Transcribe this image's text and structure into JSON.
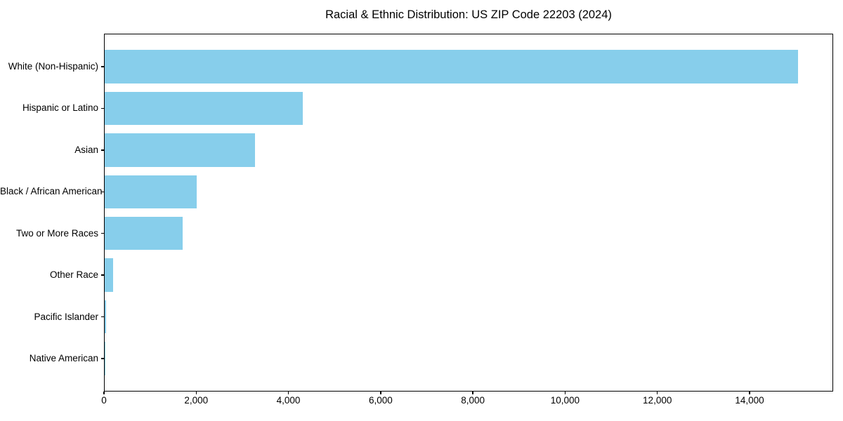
{
  "figure": {
    "background_color": "#ffffff",
    "text_color": "#000000"
  },
  "chart_data": {
    "type": "bar",
    "orientation": "horizontal",
    "title": "Racial & Ethnic Distribution: US ZIP Code 22203 (2024)",
    "categories": [
      "White (Non-Hispanic)",
      "Hispanic or Latino",
      "Asian",
      "Black / African American",
      "Two or More Races",
      "Other Race",
      "Pacific Islander",
      "Native American"
    ],
    "values": [
      15060,
      4300,
      3270,
      2000,
      1690,
      180,
      35,
      10
    ],
    "bar_color": "#87CEEB",
    "xlabel": "",
    "ylabel": "",
    "xlim": [
      0,
      15813
    ],
    "x_ticks": [
      0,
      2000,
      4000,
      6000,
      8000,
      10000,
      12000,
      14000
    ],
    "x_tick_labels": [
      "0",
      "2,000",
      "4,000",
      "6,000",
      "8,000",
      "10,000",
      "12,000",
      "14,000"
    ],
    "grid": false,
    "legend_position": "none"
  }
}
